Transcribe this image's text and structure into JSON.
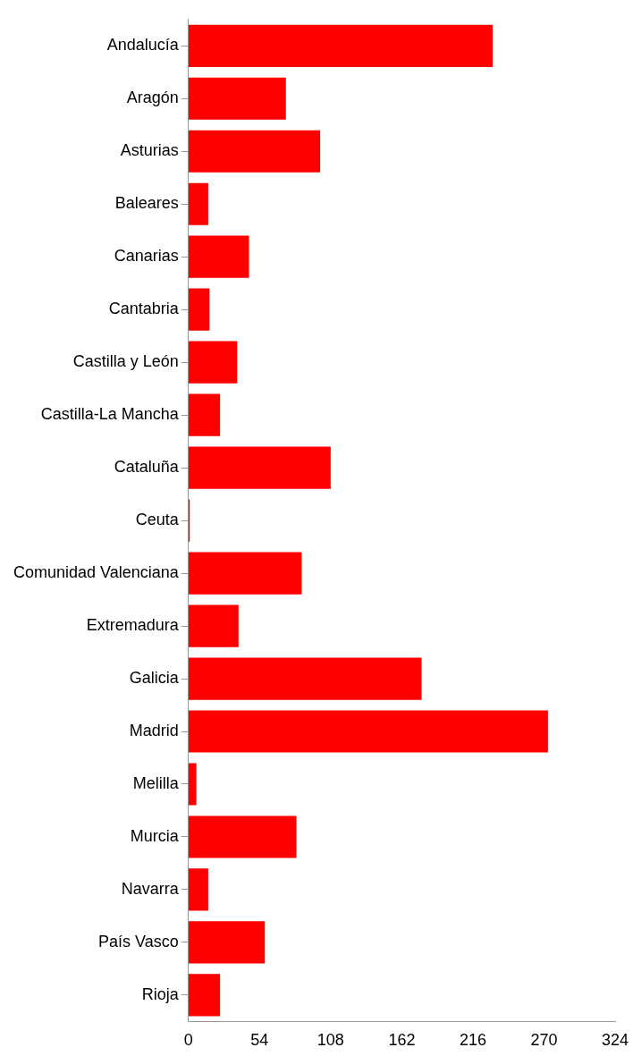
{
  "chart_data": {
    "type": "bar",
    "orientation": "horizontal",
    "categories": [
      "Andalucía",
      "Aragón",
      "Asturias",
      "Baleares",
      "Canarias",
      "Cantabria",
      "Castilla y León",
      "Castilla-La Mancha",
      "Cataluña",
      "Ceuta",
      "Comunidad Valenciana",
      "Extremadura",
      "Galicia",
      "Madrid",
      "Melilla",
      "Murcia",
      "Navarra",
      "País Vasco",
      "Rioja"
    ],
    "values": [
      231,
      74,
      100,
      15,
      46,
      16,
      37,
      24,
      108,
      1,
      86,
      38,
      177,
      273,
      6,
      82,
      15,
      58,
      24
    ],
    "color": "#ff0000",
    "xlim": [
      0,
      324
    ],
    "xticks": [
      0,
      54,
      108,
      162,
      216,
      270,
      324
    ],
    "grid": false,
    "legend": false
  }
}
